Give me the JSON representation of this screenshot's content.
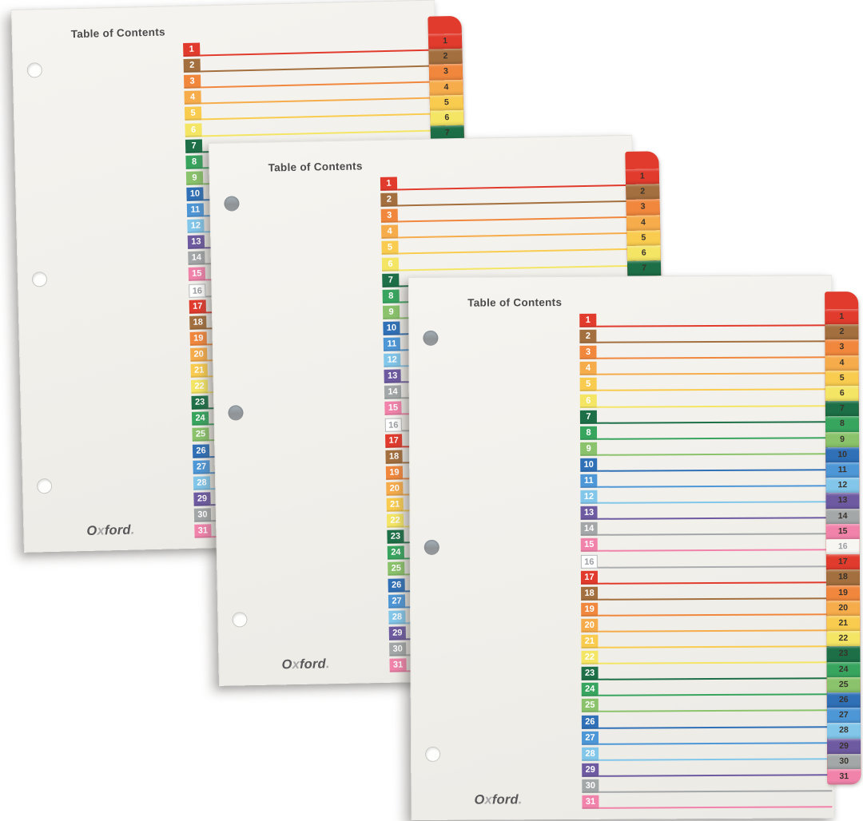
{
  "product": {
    "brand": "Oxford",
    "visible_sheet_count": 3,
    "tab_count_per_sheet": 31
  },
  "sheet": {
    "title": "Table of Contents",
    "brand_segments": [
      {
        "text": "O",
        "tone": "dark"
      },
      {
        "text": "x",
        "tone": "light"
      },
      {
        "text": "ford",
        "tone": "dark"
      },
      {
        "text": ".",
        "tone": "light"
      }
    ],
    "row_labels": [
      "1",
      "2",
      "3",
      "4",
      "5",
      "6",
      "7",
      "8",
      "9",
      "10",
      "11",
      "12",
      "13",
      "14",
      "15",
      "16",
      "17",
      "18",
      "19",
      "20",
      "21",
      "22",
      "23",
      "24",
      "25",
      "26",
      "27",
      "28",
      "29",
      "30",
      "31"
    ],
    "tab_labels": [
      "1",
      "2",
      "3",
      "4",
      "5",
      "6",
      "7",
      "8",
      "9",
      "10",
      "11",
      "12",
      "13",
      "14",
      "15",
      "16",
      "17",
      "18",
      "19",
      "20",
      "21",
      "22",
      "23",
      "24",
      "25",
      "26",
      "27",
      "28",
      "29",
      "30",
      "31"
    ]
  },
  "palette": {
    "cycle": [
      "#E13B2D",
      "#A36F3E",
      "#F0873D",
      "#F6AC4B",
      "#F9CC4F",
      "#F4E565",
      "#1C6F47",
      "#38A55F",
      "#8AC36B",
      "#2F70B7",
      "#4E97D7",
      "#82C6EA",
      "#6D5AA1",
      "#A3A7A8",
      "#F183AB",
      "#FFFFFF"
    ],
    "paper": "#F1EFEA",
    "background": "#FFFFFF",
    "title_text": "#4A4A4A",
    "row_number_text": "#FFFFFF",
    "tab_number_text": "#39332C",
    "entry16_text": "#9C9FA3",
    "entry16_border": "#B5B8BA",
    "entry16_line": "#ABAEB0",
    "entry16_tab_bg": "#F7F6F2",
    "hole_filled": "#96999C",
    "hole_empty_ring": "#C8C8C4"
  },
  "sheets": [
    {
      "name": "back-sheet",
      "holes": [
        "empty",
        "empty",
        "empty"
      ]
    },
    {
      "name": "middle-sheet",
      "holes": [
        "filled",
        "filled",
        "empty"
      ]
    },
    {
      "name": "front-sheet",
      "holes": [
        "filled",
        "filled",
        "empty"
      ]
    }
  ]
}
